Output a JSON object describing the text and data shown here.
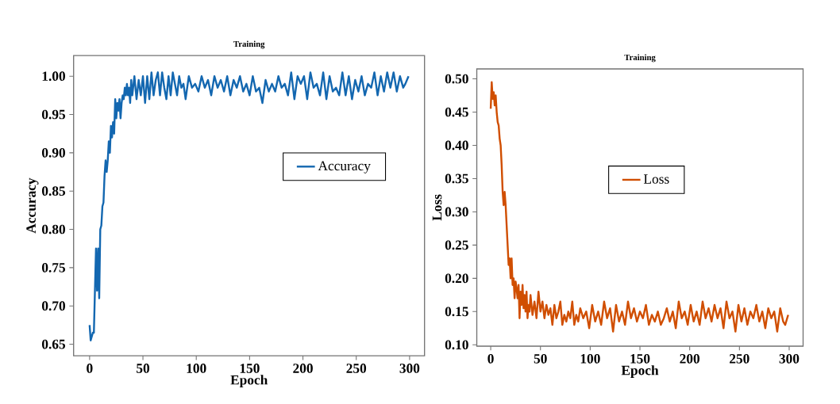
{
  "chart_data": [
    {
      "type": "line",
      "title": "Training",
      "xlabel": "Epoch",
      "ylabel": "Accuracy",
      "xlim": [
        -15,
        314
      ],
      "ylim": [
        0.635,
        1.027
      ],
      "xticks": [
        0,
        50,
        100,
        150,
        200,
        250,
        300
      ],
      "yticks": [
        {
          "value": 0.65,
          "label": "0.65"
        },
        {
          "value": 0.7,
          "label": "0.70"
        },
        {
          "value": 0.75,
          "label": "0.75"
        },
        {
          "value": 0.8,
          "label": "0.80"
        },
        {
          "value": 0.85,
          "label": "0.85"
        },
        {
          "value": 0.9,
          "label": "0.90"
        },
        {
          "value": 0.95,
          "label": "0.95"
        },
        {
          "value": 1.0,
          "label": "1.00"
        }
      ],
      "legend": "right",
      "line_style": "solid",
      "grid": false,
      "x": [
        0,
        1,
        2,
        3,
        4,
        5,
        6,
        7,
        8,
        9,
        10,
        11,
        12,
        13,
        14,
        15,
        16,
        17,
        18,
        19,
        20,
        21,
        22,
        23,
        24,
        25,
        26,
        27,
        28,
        29,
        30,
        31,
        32,
        33,
        34,
        35,
        36,
        37,
        38,
        39,
        40,
        42,
        44,
        46,
        48,
        50,
        52,
        54,
        56,
        58,
        60,
        62,
        64,
        66,
        68,
        70,
        72,
        74,
        76,
        78,
        80,
        82,
        84,
        86,
        88,
        90,
        93,
        96,
        99,
        102,
        105,
        108,
        111,
        114,
        117,
        120,
        123,
        126,
        129,
        132,
        135,
        138,
        141,
        144,
        147,
        150,
        153,
        156,
        159,
        162,
        165,
        168,
        171,
        174,
        177,
        180,
        183,
        186,
        189,
        192,
        195,
        198,
        201,
        204,
        207,
        210,
        213,
        216,
        219,
        222,
        225,
        228,
        231,
        234,
        237,
        240,
        243,
        246,
        249,
        252,
        255,
        258,
        261,
        264,
        267,
        270,
        273,
        276,
        279,
        282,
        285,
        288,
        291,
        294,
        296,
        299
      ],
      "series": [
        {
          "name": "Accuracy",
          "color": "#1367b0",
          "values": [
            0.675,
            0.655,
            0.66,
            0.665,
            0.665,
            0.72,
            0.775,
            0.72,
            0.775,
            0.71,
            0.8,
            0.805,
            0.83,
            0.835,
            0.87,
            0.89,
            0.875,
            0.89,
            0.915,
            0.9,
            0.935,
            0.92,
            0.94,
            0.925,
            0.97,
            0.945,
            0.965,
            0.955,
            0.97,
            0.945,
            0.965,
            0.975,
            0.97,
            0.985,
            0.975,
            0.99,
            0.975,
            0.985,
            0.965,
            0.995,
            0.975,
            1.0,
            0.97,
            0.995,
            0.975,
            1.0,
            0.965,
            1.0,
            0.97,
            1.005,
            0.975,
            0.995,
            1.005,
            0.975,
            1.005,
            0.985,
            0.97,
            1.0,
            0.975,
            1.005,
            0.99,
            0.975,
            1.0,
            0.985,
            0.99,
            0.97,
            1.0,
            0.985,
            0.99,
            0.98,
            1.0,
            0.985,
            0.995,
            0.975,
            1.0,
            0.985,
            0.995,
            0.98,
            1.0,
            0.975,
            0.995,
            0.985,
            1.0,
            0.98,
            0.99,
            0.975,
            1.0,
            0.98,
            0.985,
            0.965,
            0.995,
            0.98,
            0.99,
            0.98,
            1.0,
            0.985,
            0.99,
            0.975,
            1.005,
            0.97,
            1.0,
            0.99,
            1.0,
            0.97,
            1.005,
            0.985,
            0.99,
            0.975,
            1.005,
            0.97,
            1.0,
            0.98,
            0.985,
            0.975,
            1.005,
            0.975,
            1.0,
            0.97,
            0.995,
            0.98,
            1.0,
            0.975,
            0.99,
            0.985,
            1.005,
            0.975,
            1.0,
            0.98,
            1.005,
            0.985,
            1.005,
            0.98,
            1.0,
            0.985,
            0.99,
            1.0
          ]
        }
      ]
    },
    {
      "type": "line",
      "title": "Training",
      "xlabel": "Epoch",
      "ylabel": "Loss",
      "xlim": [
        -14,
        314
      ],
      "ylim": [
        0.098,
        0.515
      ],
      "xticks": [
        0,
        50,
        100,
        150,
        200,
        250,
        300
      ],
      "yticks": [
        {
          "value": 0.1,
          "label": "0.10"
        },
        {
          "value": 0.15,
          "label": "0.15"
        },
        {
          "value": 0.2,
          "label": "0.20"
        },
        {
          "value": 0.25,
          "label": "0.25"
        },
        {
          "value": 0.3,
          "label": "0.30"
        },
        {
          "value": 0.35,
          "label": "0.35"
        },
        {
          "value": 0.4,
          "label": "0.40"
        },
        {
          "value": 0.45,
          "label": "0.45"
        },
        {
          "value": 0.5,
          "label": "0.50"
        }
      ],
      "legend": "center",
      "line_style": "solid",
      "grid": false,
      "x": [
        0,
        1,
        2,
        3,
        4,
        5,
        6,
        7,
        8,
        9,
        10,
        11,
        12,
        13,
        14,
        15,
        16,
        17,
        18,
        19,
        20,
        21,
        22,
        23,
        24,
        25,
        26,
        27,
        28,
        29,
        30,
        31,
        32,
        33,
        34,
        35,
        36,
        37,
        38,
        39,
        40,
        42,
        44,
        46,
        48,
        50,
        52,
        54,
        56,
        58,
        60,
        62,
        64,
        66,
        68,
        70,
        72,
        74,
        76,
        78,
        80,
        82,
        84,
        86,
        88,
        90,
        93,
        96,
        99,
        102,
        105,
        108,
        111,
        114,
        117,
        120,
        123,
        126,
        129,
        132,
        135,
        138,
        141,
        144,
        147,
        150,
        153,
        156,
        159,
        162,
        165,
        168,
        171,
        174,
        177,
        180,
        183,
        186,
        189,
        192,
        195,
        198,
        201,
        204,
        207,
        210,
        213,
        216,
        219,
        222,
        225,
        228,
        231,
        234,
        237,
        240,
        243,
        246,
        249,
        252,
        255,
        258,
        261,
        264,
        267,
        270,
        273,
        276,
        279,
        282,
        285,
        288,
        291,
        294,
        296,
        299
      ],
      "series": [
        {
          "name": "Loss",
          "color": "#d04e00",
          "values": [
            0.455,
            0.495,
            0.47,
            0.48,
            0.46,
            0.475,
            0.45,
            0.435,
            0.43,
            0.41,
            0.4,
            0.37,
            0.33,
            0.31,
            0.33,
            0.31,
            0.28,
            0.25,
            0.22,
            0.23,
            0.2,
            0.23,
            0.19,
            0.2,
            0.17,
            0.195,
            0.185,
            0.17,
            0.19,
            0.14,
            0.18,
            0.16,
            0.19,
            0.155,
            0.175,
            0.15,
            0.18,
            0.14,
            0.16,
            0.15,
            0.175,
            0.145,
            0.165,
            0.14,
            0.18,
            0.15,
            0.165,
            0.14,
            0.16,
            0.145,
            0.155,
            0.13,
            0.16,
            0.14,
            0.15,
            0.165,
            0.13,
            0.145,
            0.135,
            0.15,
            0.14,
            0.165,
            0.13,
            0.145,
            0.135,
            0.155,
            0.14,
            0.15,
            0.125,
            0.16,
            0.135,
            0.15,
            0.13,
            0.165,
            0.14,
            0.155,
            0.12,
            0.16,
            0.135,
            0.15,
            0.13,
            0.165,
            0.14,
            0.155,
            0.135,
            0.15,
            0.14,
            0.16,
            0.13,
            0.145,
            0.135,
            0.15,
            0.13,
            0.14,
            0.155,
            0.135,
            0.15,
            0.125,
            0.165,
            0.14,
            0.15,
            0.13,
            0.16,
            0.135,
            0.15,
            0.13,
            0.165,
            0.14,
            0.155,
            0.135,
            0.16,
            0.14,
            0.155,
            0.125,
            0.165,
            0.14,
            0.15,
            0.12,
            0.16,
            0.135,
            0.155,
            0.13,
            0.15,
            0.14,
            0.16,
            0.135,
            0.15,
            0.125,
            0.155,
            0.14,
            0.15,
            0.12,
            0.155,
            0.135,
            0.13,
            0.145
          ]
        }
      ]
    }
  ]
}
